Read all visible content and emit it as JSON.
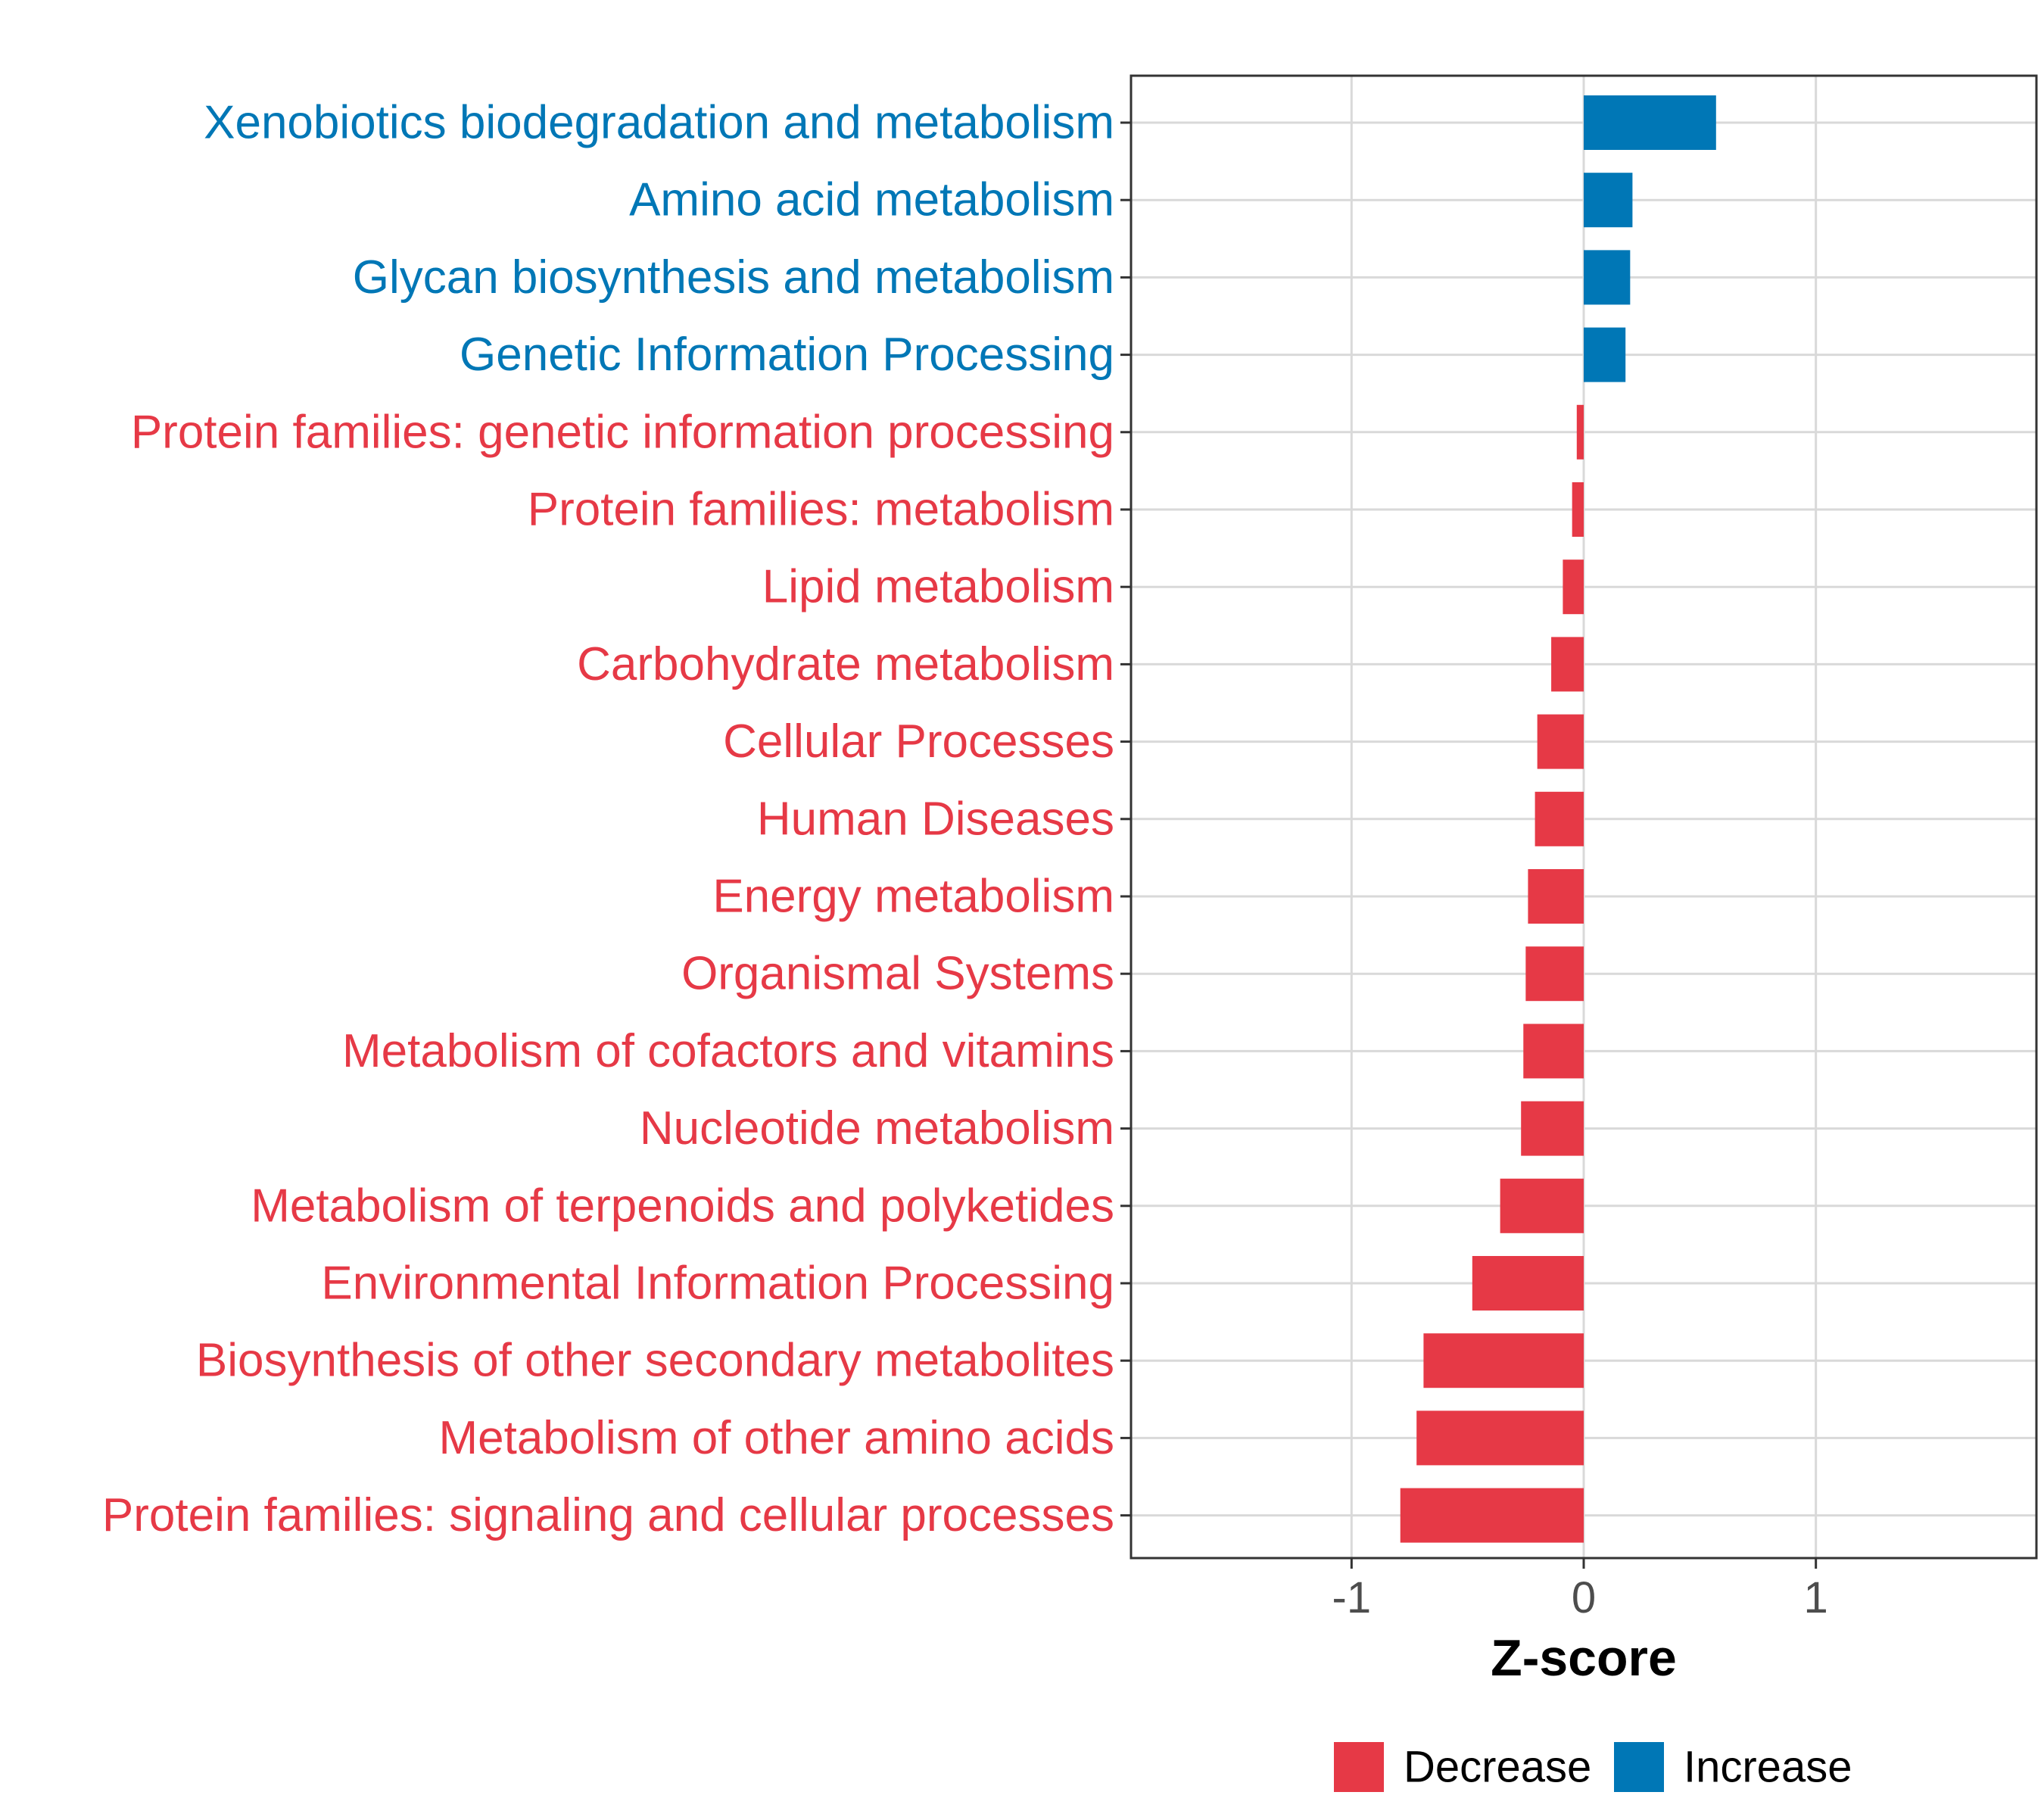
{
  "chart_data": {
    "type": "bar",
    "orientation": "horizontal",
    "title": "",
    "xlabel": "Z-score",
    "ylabel": "",
    "xlim": [
      -1.95,
      1.95
    ],
    "xticks": [
      {
        "value": -1,
        "label": "-1"
      },
      {
        "value": 0,
        "label": "0"
      },
      {
        "value": 1,
        "label": "1"
      }
    ],
    "grid": true,
    "legend_position": "bottom",
    "colors": {
      "Decrease": "#e63946",
      "Increase": "#0077b6"
    },
    "legend": [
      {
        "label": "Decrease",
        "color": "#e63946"
      },
      {
        "label": "Increase",
        "color": "#0077b6"
      }
    ],
    "categories": [
      "Xenobiotics biodegradation and metabolism",
      "Amino acid metabolism",
      "Glycan biosynthesis and metabolism",
      "Genetic Information Processing",
      "Protein families: genetic information processing",
      "Protein families: metabolism",
      "Lipid metabolism",
      "Carbohydrate metabolism",
      "Cellular Processes",
      "Human Diseases",
      "Energy metabolism",
      "Organismal Systems",
      "Metabolism of cofactors and vitamins",
      "Nucleotide metabolism",
      "Metabolism of terpenoids and polyketides",
      "Environmental Information Processing",
      "Biosynthesis of other secondary metabolites",
      "Metabolism of other amino acids",
      "Protein families: signaling and cellular processes"
    ],
    "values": [
      0.57,
      0.21,
      0.2,
      0.18,
      -0.03,
      -0.05,
      -0.09,
      -0.14,
      -0.2,
      -0.21,
      -0.24,
      -0.25,
      -0.26,
      -0.27,
      -0.36,
      -0.48,
      -0.69,
      -0.72,
      -0.79
    ],
    "groups": [
      "Increase",
      "Increase",
      "Increase",
      "Increase",
      "Decrease",
      "Decrease",
      "Decrease",
      "Decrease",
      "Decrease",
      "Decrease",
      "Decrease",
      "Decrease",
      "Decrease",
      "Decrease",
      "Decrease",
      "Decrease",
      "Decrease",
      "Decrease",
      "Decrease"
    ]
  }
}
